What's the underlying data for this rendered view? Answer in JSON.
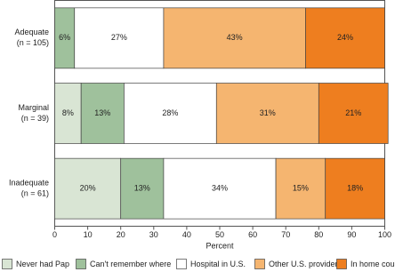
{
  "chart_data": {
    "type": "stacked-barh",
    "categories": [
      "Adequate",
      "Marginal",
      "Inadequate"
    ],
    "category_notes": [
      "(n = 105)",
      "(n = 39)",
      "(n = 61)"
    ],
    "x_label": "Percent",
    "xlim": [
      0,
      100
    ],
    "xticks": [
      0,
      10,
      20,
      30,
      40,
      50,
      60,
      70,
      80,
      90,
      100
    ],
    "series": [
      {
        "name": "Never had Pap",
        "color": "#d9e5d4",
        "values": [
          0,
          8,
          20
        ],
        "value_labels": [
          null,
          "8%",
          "20%"
        ]
      },
      {
        "name": "Can't remember where",
        "color": "#9fc19c",
        "values": [
          6,
          13,
          13
        ],
        "value_labels": [
          "6%",
          "13%",
          "13%"
        ]
      },
      {
        "name": "Hospital in U.S.",
        "color": "#ffffff",
        "values": [
          27,
          28,
          34
        ],
        "value_labels": [
          "27%",
          "28%",
          "34%"
        ]
      },
      {
        "name": "Other U.S. provider",
        "color": "#f5b570",
        "values": [
          43,
          31,
          15
        ],
        "value_labels": [
          "43%",
          "31%",
          "15%"
        ]
      },
      {
        "name": "In home country",
        "color": "#ee7e1f",
        "values": [
          24,
          21,
          18
        ],
        "value_labels": [
          "24%",
          "21%",
          "18%"
        ]
      }
    ]
  }
}
